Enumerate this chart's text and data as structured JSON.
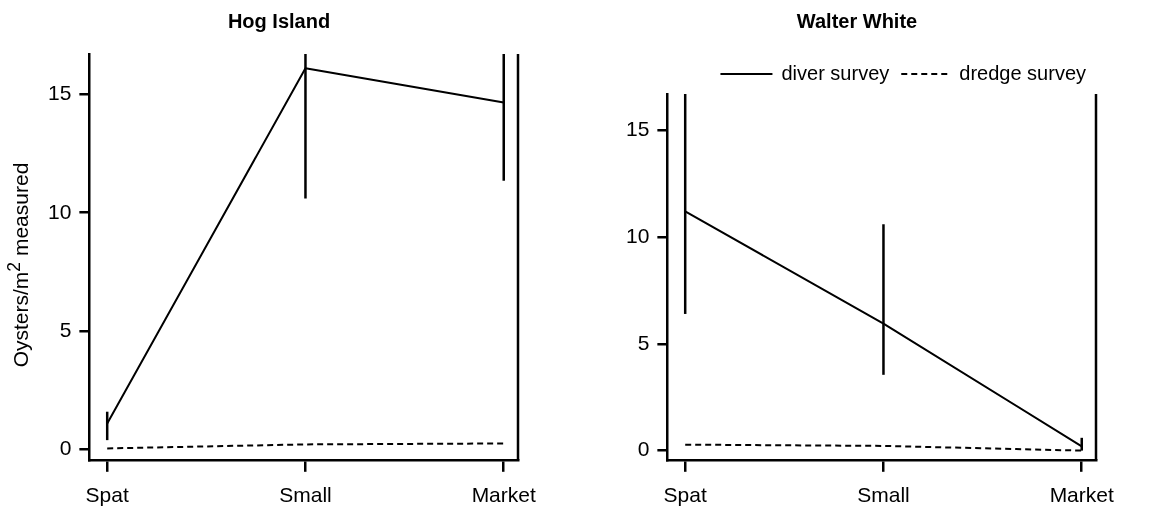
{
  "chart_data": [
    {
      "type": "line",
      "title": "Hog Island",
      "ylabel": "Oysters/m$^{2}$ measured",
      "categories": [
        "Spat",
        "Small",
        "Market"
      ],
      "ylim": [
        -0.43,
        16.7
      ],
      "yticks": [
        0,
        5,
        10,
        15
      ],
      "grid": false,
      "legend": false,
      "marker": "none",
      "series": [
        {
          "color": "#000000",
          "line_style": "solid",
          "values": [
            1.1,
            16.1,
            14.65
          ],
          "errors": [
            [
              0.4,
              1.6
            ],
            [
              10.6,
              16.7
            ],
            [
              11.35,
              16.7
            ]
          ]
        },
        {
          "color": "#000000",
          "line_style": "dashed",
          "values": [
            0.05,
            0.22,
            0.26
          ]
        }
      ]
    },
    {
      "type": "line",
      "title": "Walter White",
      "categories": [
        "Spat",
        "Small",
        "Market"
      ],
      "ylim": [
        -0.43,
        16.7
      ],
      "yticks": [
        0,
        5,
        10,
        15
      ],
      "grid": false,
      "legend": "top right",
      "marker": "none",
      "series": [
        {
          "name": "diver survey",
          "color": "#000000",
          "line_style": "solid",
          "values": [
            11.2,
            5.95,
            0.2
          ],
          "errors": [
            [
              6.4,
              16.7
            ],
            [
              3.55,
              10.6
            ],
            [
              0,
              0.6
            ]
          ]
        },
        {
          "name": "dredge survey",
          "color": "#000000",
          "line_style": "dashed",
          "values": [
            0.28,
            0.22,
            0.0
          ]
        }
      ]
    }
  ]
}
